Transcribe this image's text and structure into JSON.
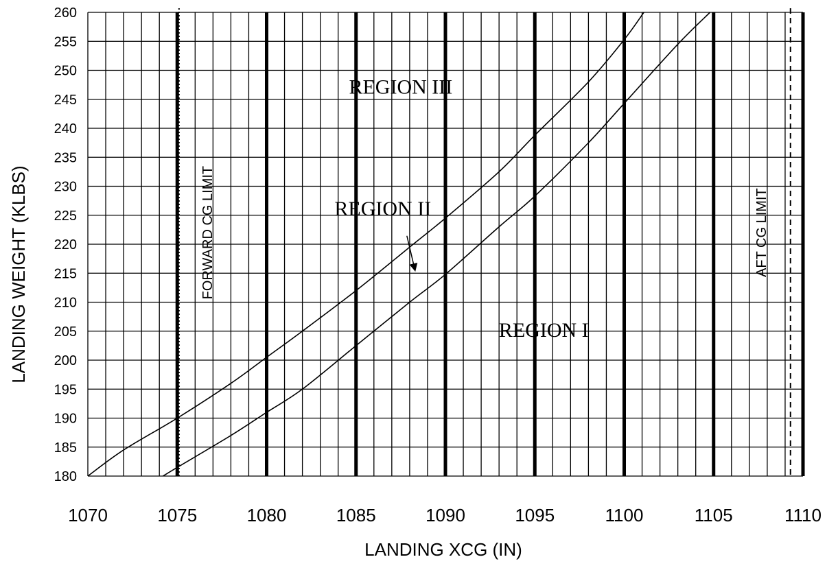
{
  "chart_data": {
    "type": "line",
    "title": "",
    "xlabel": "LANDING XCG (IN)",
    "ylabel": "LANDING WEIGHT (KLBS)",
    "xlim": [
      1070,
      1110
    ],
    "ylim": [
      180,
      260
    ],
    "x_ticks": [
      "1070",
      "1075",
      "1080",
      "1085",
      "1090",
      "1095",
      "1100",
      "1105",
      "1110"
    ],
    "y_ticks": [
      "180",
      "185",
      "190",
      "195",
      "200",
      "205",
      "210",
      "215",
      "220",
      "225",
      "230",
      "235",
      "240",
      "245",
      "250",
      "255",
      "260"
    ],
    "grid": true,
    "minor_grid_step_x": 1,
    "minor_grid_step_y": 5,
    "series": [
      {
        "x": [
          1070,
          1072,
          1075,
          1078,
          1080,
          1082,
          1085,
          1088,
          1090,
          1093,
          1095,
          1098,
          1100,
          1101.1
        ],
        "y": [
          180,
          184.5,
          190,
          196,
          200.5,
          205,
          212,
          219.5,
          224.5,
          232.5,
          238.8,
          248,
          255.3,
          260
        ]
      },
      {
        "x": [
          1074.2,
          1075,
          1078,
          1080,
          1082,
          1085,
          1088,
          1090,
          1093,
          1095,
          1098,
          1100,
          1103,
          1104.8
        ],
        "y": [
          180,
          181.5,
          187,
          191,
          195,
          202.5,
          210,
          214.8,
          223,
          228.3,
          237.5,
          244.3,
          254.5,
          260
        ]
      }
    ],
    "vertical_lines": [
      {
        "x": 1075.1,
        "style": "dotted",
        "label": "FORWARD CG LIMIT"
      },
      {
        "x": 1109.3,
        "style": "dashed",
        "label": "AFT CG LIMIT"
      }
    ],
    "annotations": [
      {
        "text": "REGION III",
        "x": 1087.5,
        "y": 246
      },
      {
        "text": "REGION II",
        "x": 1086.5,
        "y": 225,
        "arrow_to": [
          1088.3,
          215.5
        ]
      },
      {
        "text": "REGION I",
        "x": 1095.5,
        "y": 204
      }
    ]
  }
}
